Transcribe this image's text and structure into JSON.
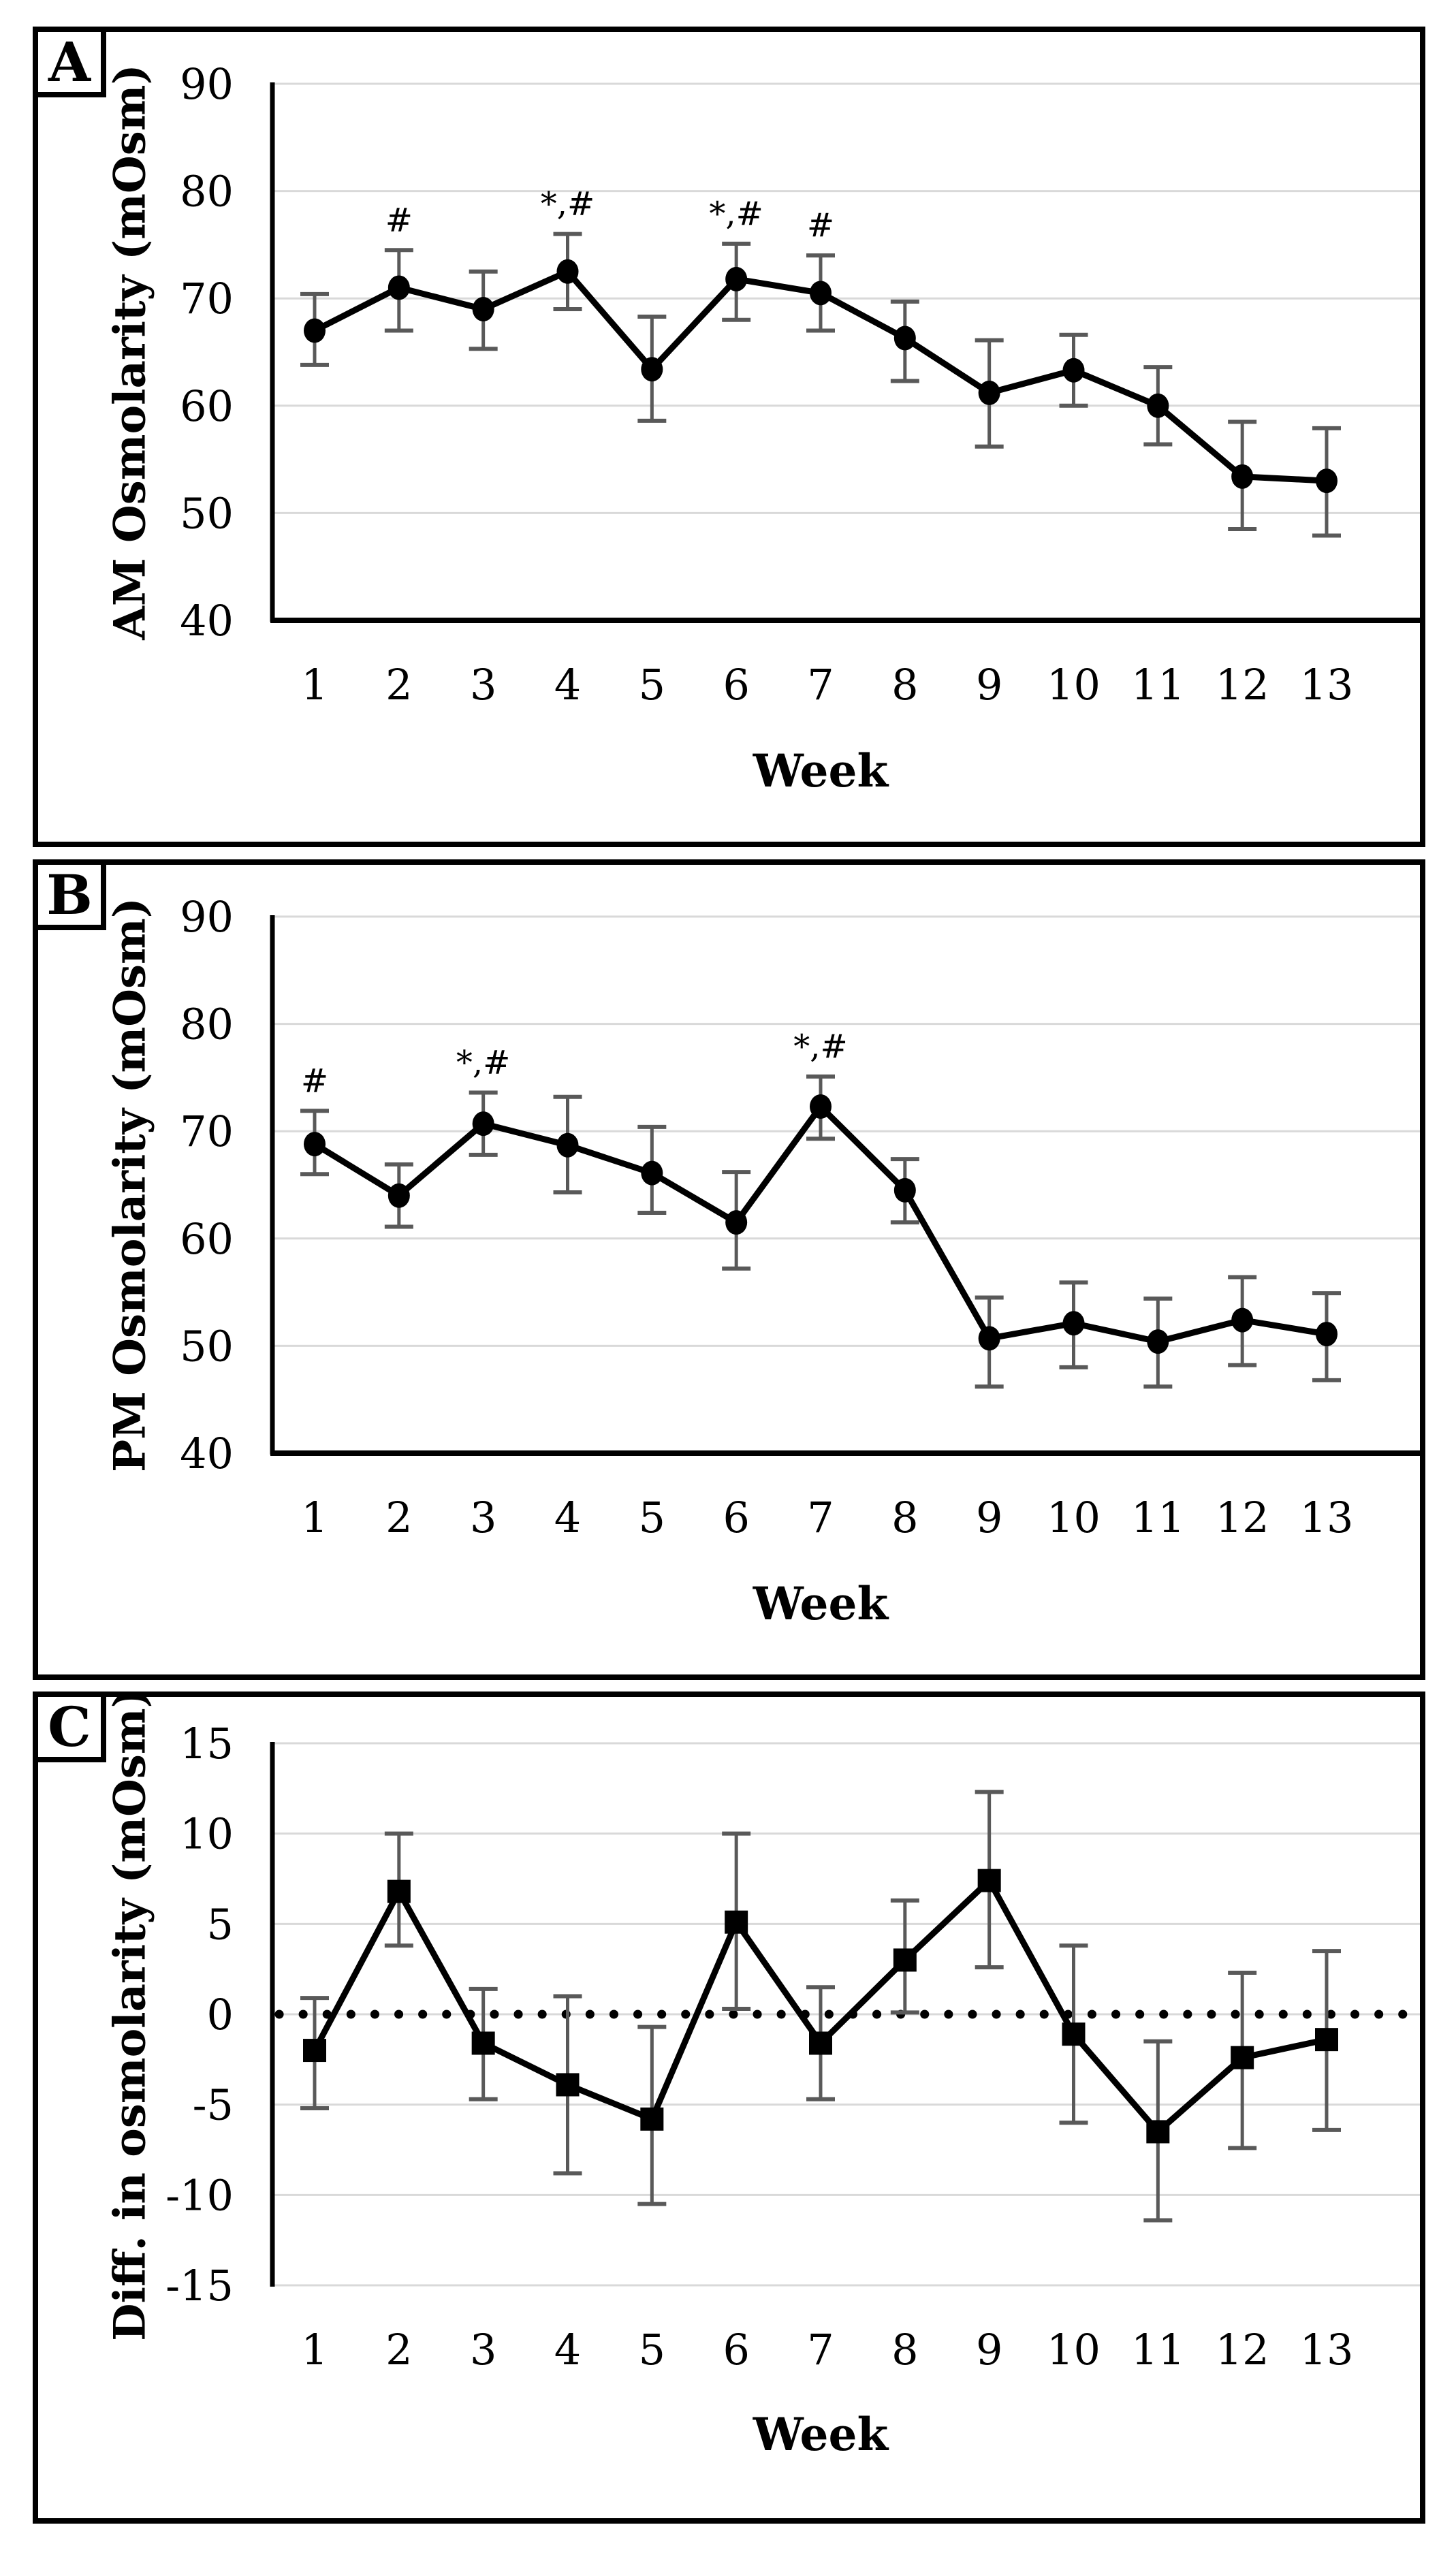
{
  "figure": {
    "colors": {
      "line": "#000000",
      "marker": "#000000",
      "error_bar": "#595959",
      "gridline": "#d9d9d9",
      "background": "#ffffff",
      "border": "#000000"
    }
  },
  "chart_data": [
    {
      "panel_label": "A",
      "type": "line",
      "title": "",
      "xlabel": "Week",
      "ylabel": "AM Osmolarity (mOsm)",
      "x": [
        1,
        2,
        3,
        4,
        5,
        6,
        7,
        8,
        9,
        10,
        11,
        12,
        13
      ],
      "values": [
        67.0,
        71.0,
        69.0,
        72.5,
        63.4,
        71.8,
        70.5,
        66.3,
        61.2,
        63.3,
        60.0,
        53.4,
        53.0
      ],
      "err_high": [
        70.4,
        74.5,
        72.5,
        76.0,
        68.3,
        75.1,
        74.0,
        69.7,
        66.1,
        66.6,
        63.6,
        58.5,
        57.9
      ],
      "err_low": [
        63.8,
        67.0,
        65.3,
        69.0,
        58.6,
        68.0,
        67.0,
        62.3,
        56.2,
        60.0,
        56.4,
        48.5,
        47.9
      ],
      "annotations": [
        {
          "x": 2,
          "text": "#"
        },
        {
          "x": 4,
          "text": "*,#"
        },
        {
          "x": 6,
          "text": "*,#"
        },
        {
          "x": 7,
          "text": "#"
        }
      ],
      "ylim": [
        40,
        90
      ],
      "yticks": [
        90,
        80,
        70,
        60,
        50,
        40
      ],
      "marker": "circle",
      "grid": true,
      "legend": "none",
      "x_axis_line": true,
      "zero_line": false
    },
    {
      "panel_label": "B",
      "type": "line",
      "title": "",
      "xlabel": "Week",
      "ylabel": "PM Osmolarity (mOsm)",
      "x": [
        1,
        2,
        3,
        4,
        5,
        6,
        7,
        8,
        9,
        10,
        11,
        12,
        13
      ],
      "values": [
        68.8,
        64.0,
        70.7,
        68.7,
        66.1,
        61.5,
        72.3,
        64.5,
        50.7,
        52.1,
        50.4,
        52.4,
        51.1
      ],
      "err_high": [
        71.9,
        66.9,
        73.6,
        73.2,
        70.4,
        66.2,
        75.1,
        67.4,
        54.5,
        55.9,
        54.4,
        56.4,
        54.9
      ],
      "err_low": [
        66.0,
        61.1,
        67.8,
        64.3,
        62.4,
        57.2,
        69.3,
        61.5,
        46.2,
        48.0,
        46.2,
        48.2,
        46.8
      ],
      "annotations": [
        {
          "x": 1,
          "text": "#"
        },
        {
          "x": 3,
          "text": "*,#"
        },
        {
          "x": 7,
          "text": "*,#"
        }
      ],
      "ylim": [
        40,
        90
      ],
      "yticks": [
        90,
        80,
        70,
        60,
        50,
        40
      ],
      "marker": "circle",
      "grid": true,
      "legend": "none",
      "x_axis_line": true,
      "zero_line": false
    },
    {
      "panel_label": "C",
      "type": "line",
      "title": "",
      "xlabel": "Week",
      "ylabel": "Diff. in osmolarity (mOsm)",
      "x": [
        1,
        2,
        3,
        4,
        5,
        6,
        7,
        8,
        9,
        10,
        11,
        12,
        13
      ],
      "values": [
        -2.0,
        6.8,
        -1.6,
        -3.9,
        -5.8,
        5.1,
        -1.6,
        3.0,
        7.4,
        -1.1,
        -6.5,
        -2.4,
        -1.4
      ],
      "err_high": [
        0.9,
        10.0,
        1.4,
        1.0,
        -0.7,
        10.0,
        1.5,
        6.3,
        12.3,
        3.8,
        -1.5,
        2.3,
        3.5
      ],
      "err_low": [
        -5.2,
        3.8,
        -4.7,
        -8.8,
        -10.5,
        0.3,
        -4.7,
        0.1,
        2.6,
        -6.0,
        -11.4,
        -7.4,
        -6.4
      ],
      "annotations": [],
      "ylim": [
        -15,
        15
      ],
      "yticks": [
        15,
        10,
        5,
        0,
        -5,
        -10,
        -15
      ],
      "marker": "square",
      "grid": true,
      "legend": "none",
      "x_axis_line": false,
      "zero_line": true
    }
  ]
}
